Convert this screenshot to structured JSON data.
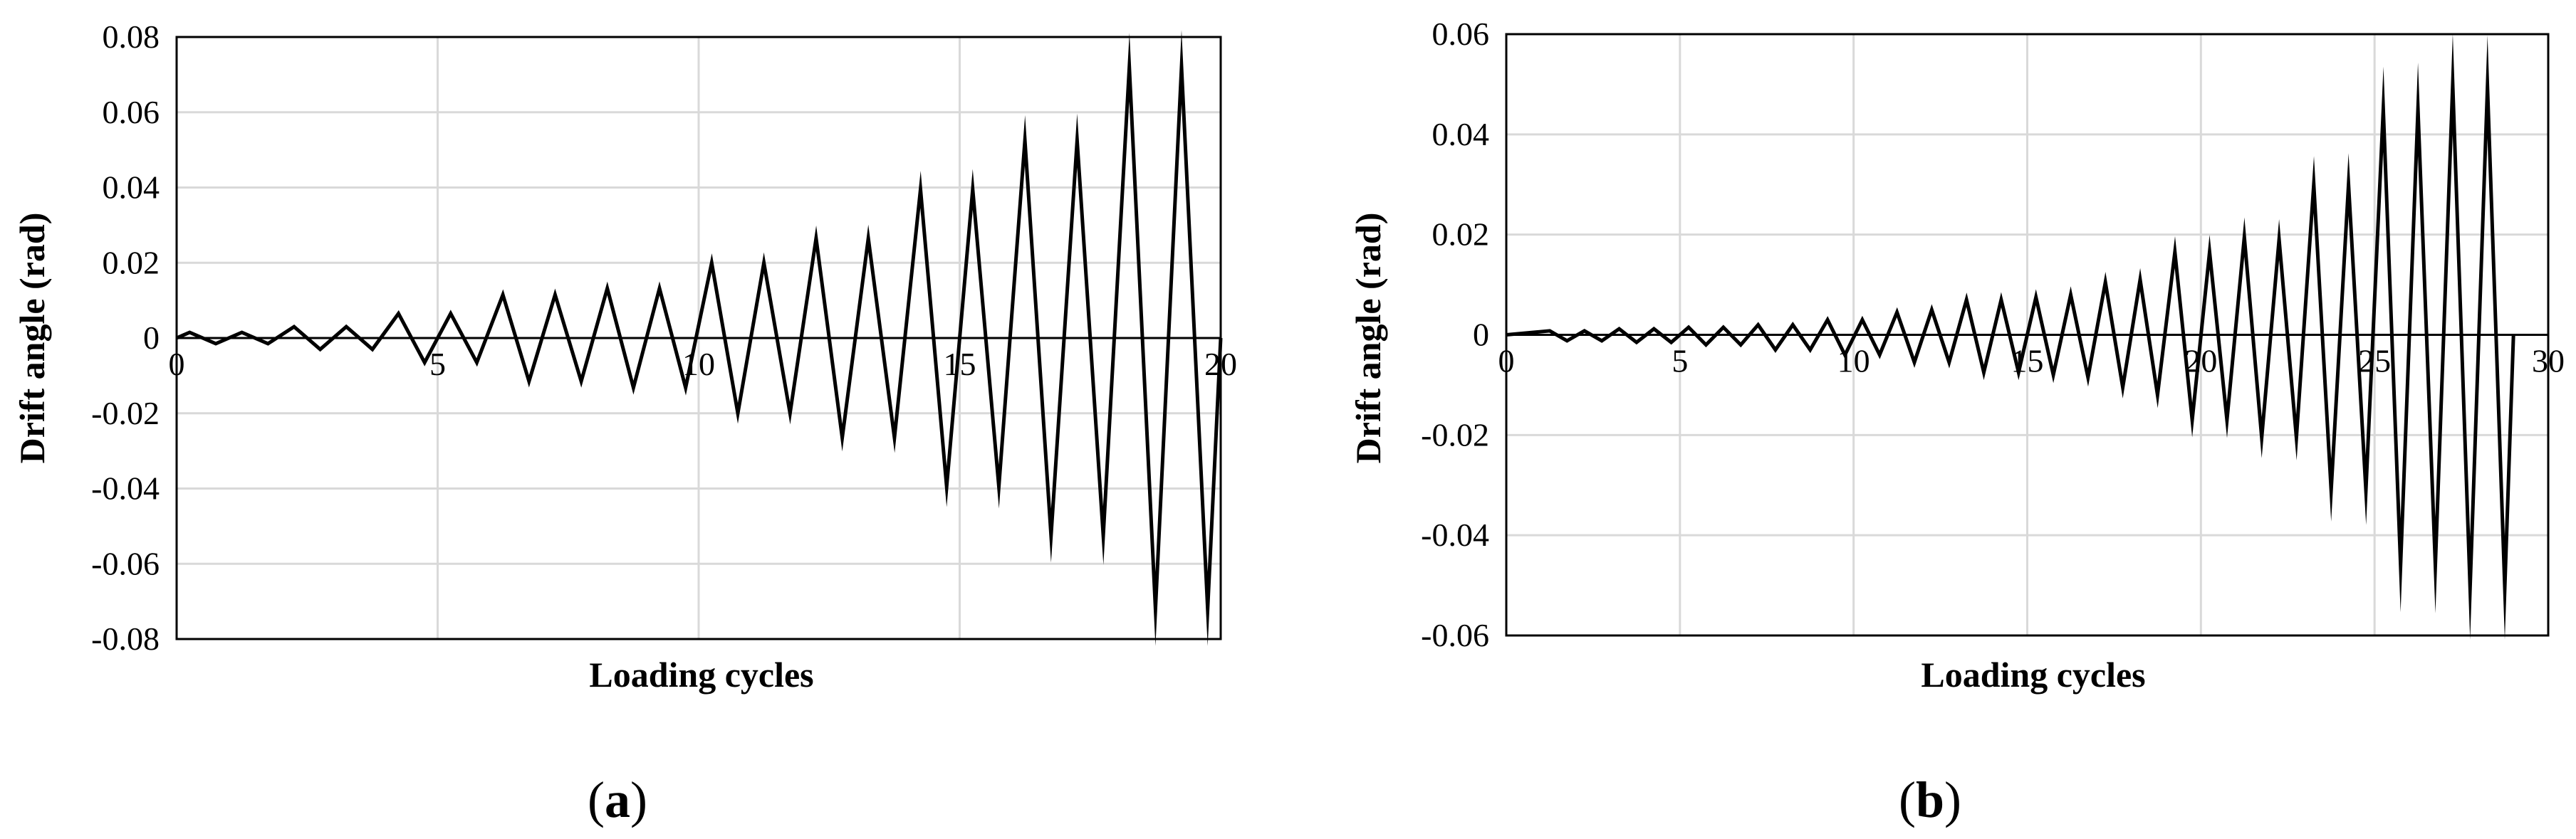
{
  "chart_data": [
    {
      "type": "line",
      "caption": "a",
      "xlabel": "Loading cycles",
      "ylabel": "Drift angle (rad)",
      "xlim": [
        0,
        20
      ],
      "ylim": [
        -0.08,
        0.08
      ],
      "xticks": [
        "0",
        "5",
        "10",
        "15",
        "20"
      ],
      "yticks": [
        "0.08",
        "0.06",
        "0.04",
        "0.02",
        "0",
        "-0.02",
        "-0.04",
        "-0.06",
        "-0.08"
      ],
      "grid": true,
      "series": [
        {
          "color": "#000000",
          "x": [
            0,
            0.25,
            0.75,
            1.25,
            1.75,
            2.25,
            2.75,
            3.25,
            3.75,
            4.25,
            4.75,
            5.25,
            5.75,
            6.25,
            6.75,
            7.25,
            7.75,
            8.25,
            8.75,
            9.25,
            9.75,
            10.25,
            10.75,
            11.25,
            11.75,
            12.25,
            12.75,
            13.25,
            13.75,
            14.25,
            14.75,
            15.25,
            15.75,
            16.25,
            16.75,
            17.25,
            17.75,
            18.25,
            18.75,
            19.25,
            19.75,
            20
          ],
          "y": [
            0,
            0.0015,
            -0.0015,
            0.0015,
            -0.0015,
            0.003,
            -0.003,
            0.003,
            -0.003,
            0.0065,
            -0.0065,
            0.0065,
            -0.0065,
            0.0115,
            -0.0115,
            0.0115,
            -0.0115,
            0.0132,
            -0.0132,
            0.0132,
            -0.0132,
            0.02,
            -0.02,
            0.02,
            -0.02,
            0.0265,
            -0.0265,
            0.0265,
            -0.0265,
            0.0395,
            -0.0395,
            0.0395,
            -0.0395,
            0.0525,
            -0.0525,
            0.0525,
            -0.0525,
            0.072,
            -0.072,
            0.072,
            -0.072,
            0
          ]
        }
      ]
    },
    {
      "type": "line",
      "caption": "b",
      "xlabel": "Loading cycles",
      "ylabel": "Drift angle (rad)",
      "xlim": [
        0,
        30
      ],
      "ylim": [
        -0.06,
        0.06
      ],
      "xticks": [
        "0",
        "5",
        "10",
        "15",
        "20",
        "25",
        "30"
      ],
      "yticks": [
        "0.06",
        "0.04",
        "0.02",
        "0",
        "-0.02",
        "-0.04",
        "-0.06"
      ],
      "grid": true,
      "series": [
        {
          "color": "#000000",
          "x": [
            0,
            1.25,
            1.75,
            2.25,
            2.75,
            3.25,
            3.75,
            4.25,
            4.75,
            5.25,
            5.75,
            6.25,
            6.75,
            7.25,
            7.75,
            8.25,
            8.75,
            9.25,
            9.75,
            10.25,
            10.75,
            11.25,
            11.75,
            12.25,
            12.75,
            13.25,
            13.75,
            14.25,
            14.75,
            15.25,
            15.75,
            16.25,
            16.75,
            17.25,
            17.75,
            18.25,
            18.75,
            19.25,
            19.75,
            20.25,
            20.75,
            21.25,
            21.75,
            22.25,
            22.75,
            23.25,
            23.75,
            24.25,
            24.75,
            25.25,
            25.75,
            26.25,
            26.75,
            27.25,
            27.75,
            28.25,
            28.75,
            29
          ],
          "y": [
            0,
            0.0008,
            -0.0012,
            0.0008,
            -0.0012,
            0.0012,
            -0.0015,
            0.0012,
            -0.0015,
            0.0015,
            -0.002,
            0.0015,
            -0.002,
            0.002,
            -0.003,
            0.002,
            -0.003,
            0.003,
            -0.004,
            0.003,
            -0.004,
            0.0045,
            -0.0055,
            0.005,
            -0.0055,
            0.007,
            -0.0075,
            0.007,
            -0.0075,
            0.0075,
            -0.008,
            0.008,
            -0.0085,
            0.0105,
            -0.0105,
            0.011,
            -0.012,
            0.0165,
            -0.017,
            0.0165,
            -0.017,
            0.0195,
            -0.0205,
            0.019,
            -0.0205,
            0.03,
            -0.031,
            0.03,
            -0.031,
            0.045,
            -0.046,
            0.045,
            -0.046,
            0.05,
            -0.0505,
            0.0495,
            -0.0505,
            0
          ]
        }
      ]
    }
  ]
}
